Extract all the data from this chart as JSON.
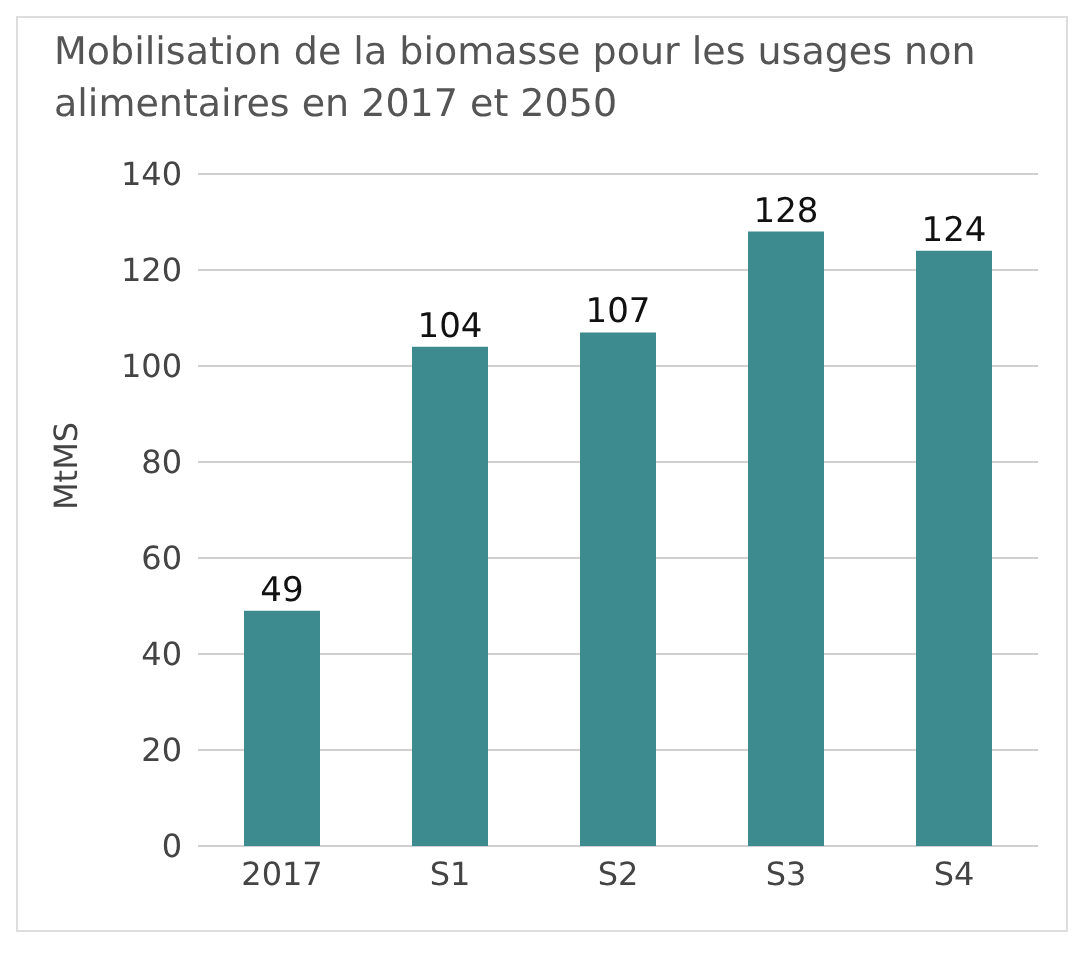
{
  "chart_data": {
    "type": "bar",
    "title": "Mobilisation de la biomasse pour les usages non alimentaires en 2017 et 2050",
    "categories": [
      "2017",
      "S1",
      "S2",
      "S3",
      "S4"
    ],
    "values": [
      49,
      104,
      107,
      128,
      124
    ],
    "color": "#3d8b8f",
    "ylabel": "MtMS",
    "ylim": [
      0,
      140
    ],
    "yticks": [
      0,
      20,
      40,
      60,
      80,
      100,
      120,
      140
    ],
    "grid": "y",
    "data_labels": true
  }
}
